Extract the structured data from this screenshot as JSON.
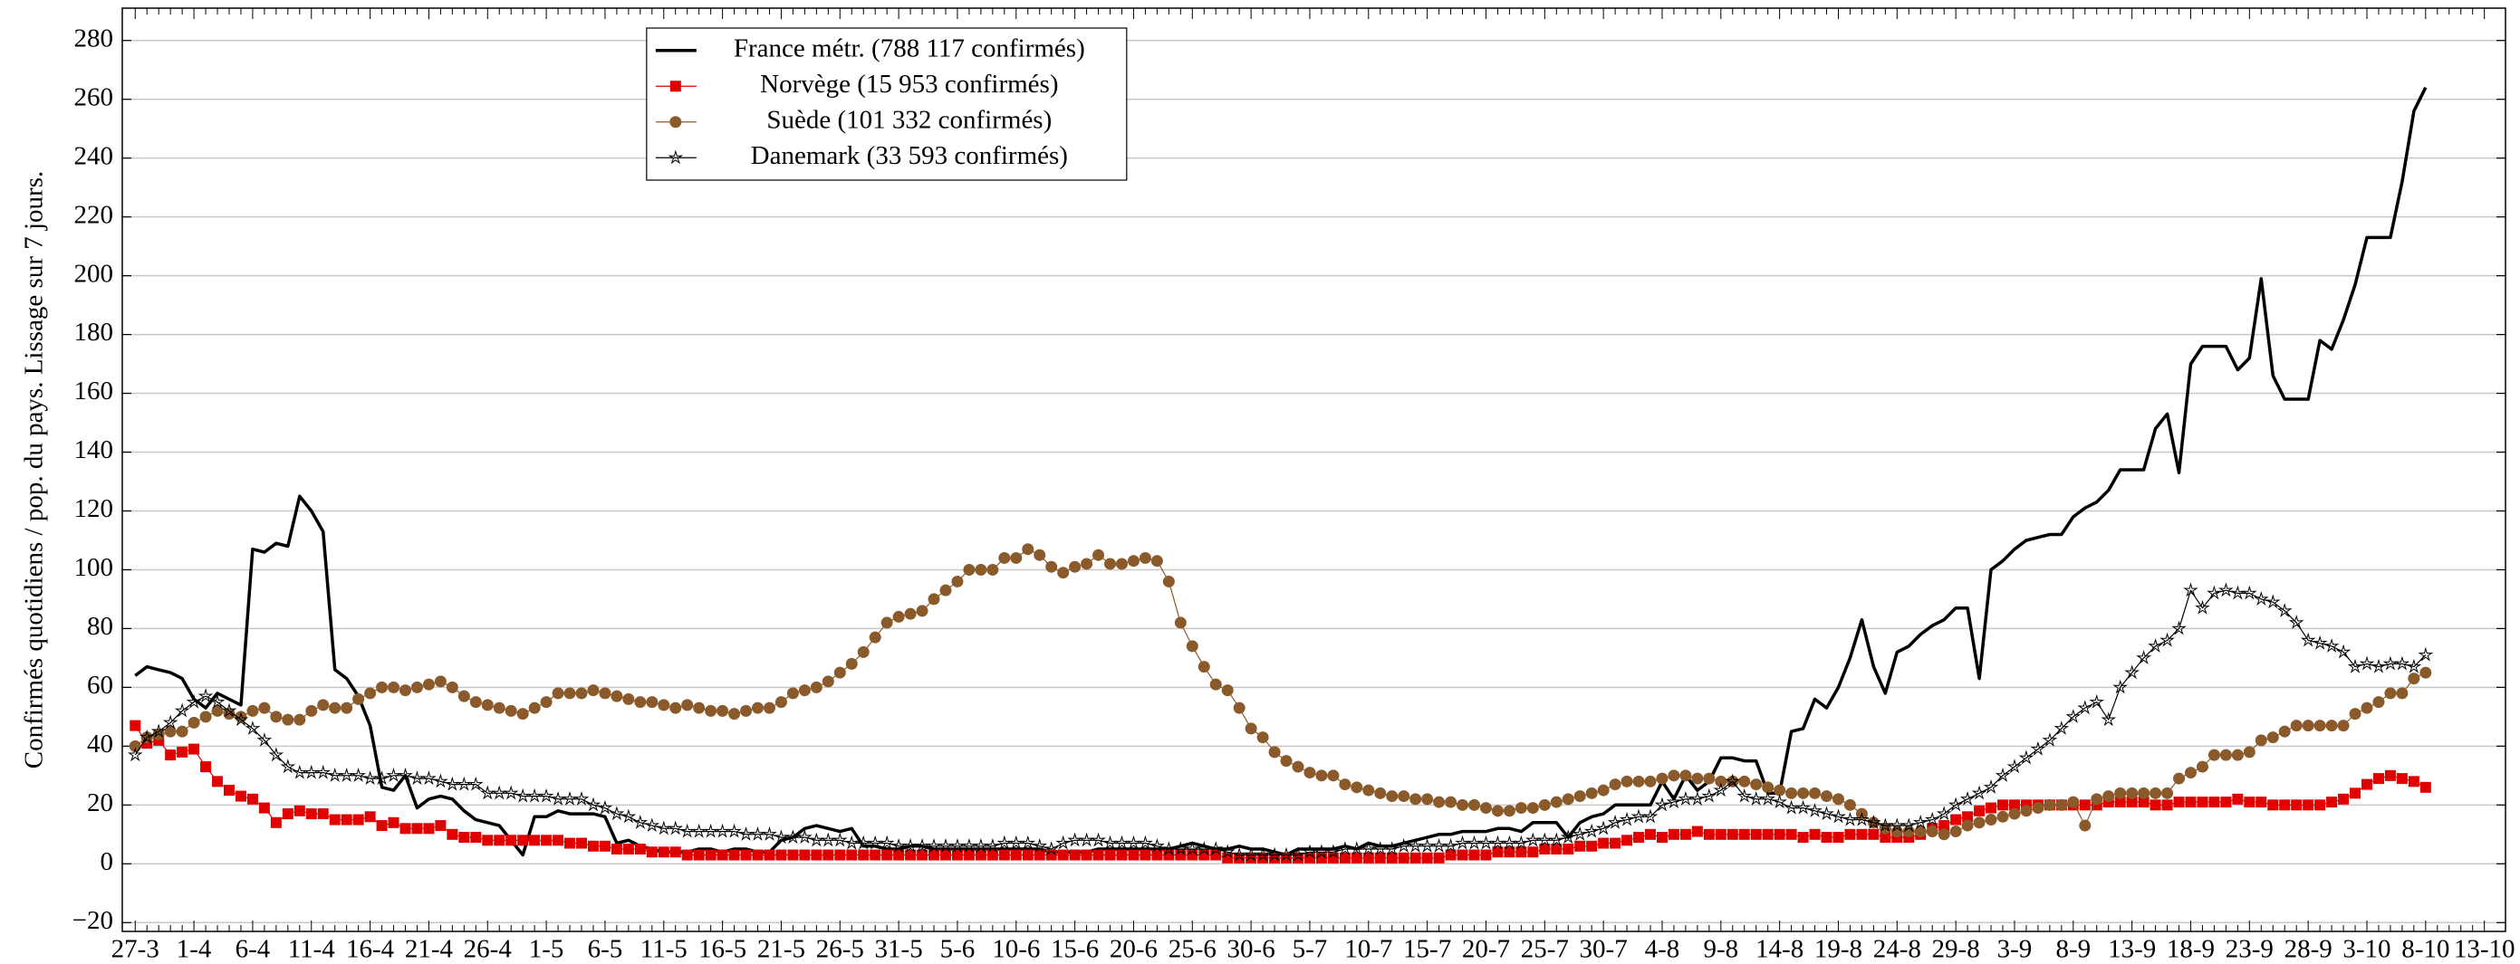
{
  "chart_data": {
    "type": "line",
    "y_label": "Confirmés quotidiens / pop. du pays. Lissage sur 7 jours.",
    "categories": [
      "27-3",
      null,
      null,
      null,
      null,
      "1-4",
      null,
      null,
      null,
      null,
      "6-4",
      null,
      null,
      null,
      null,
      "11-4",
      null,
      null,
      null,
      null,
      "16-4",
      null,
      null,
      null,
      null,
      "21-4",
      null,
      null,
      null,
      null,
      "26-4",
      null,
      null,
      null,
      null,
      "1-5",
      null,
      null,
      null,
      null,
      "6-5",
      null,
      null,
      null,
      null,
      "11-5",
      null,
      null,
      null,
      null,
      "16-5",
      null,
      null,
      null,
      null,
      "21-5",
      null,
      null,
      null,
      null,
      "26-5",
      null,
      null,
      null,
      null,
      "31-5",
      null,
      null,
      null,
      null,
      "5-6",
      null,
      null,
      null,
      null,
      "10-6",
      null,
      null,
      null,
      null,
      "15-6",
      null,
      null,
      null,
      null,
      "20-6",
      null,
      null,
      null,
      null,
      "25-6",
      null,
      null,
      null,
      null,
      "30-6",
      null,
      null,
      null,
      null,
      "5-7",
      null,
      null,
      null,
      null,
      "10-7",
      null,
      null,
      null,
      null,
      "15-7",
      null,
      null,
      null,
      null,
      "20-7",
      null,
      null,
      null,
      null,
      "25-7",
      null,
      null,
      null,
      null,
      "30-7",
      null,
      null,
      null,
      null,
      "4-8",
      null,
      null,
      null,
      null,
      "9-8",
      null,
      null,
      null,
      null,
      "14-8",
      null,
      null,
      null,
      null,
      "19-8",
      null,
      null,
      null,
      null,
      "24-8",
      null,
      null,
      null,
      null,
      "29-8",
      null,
      null,
      null,
      null,
      "3-9",
      null,
      null,
      null,
      null,
      "8-9",
      null,
      null,
      null,
      null,
      "13-9",
      null,
      null,
      null,
      null,
      "18-9",
      null,
      null,
      null,
      null,
      "23-9",
      null,
      null,
      null,
      null,
      "28-9",
      null,
      null,
      null,
      null,
      "3-10",
      null,
      null,
      null,
      null,
      "8-10",
      null,
      null,
      null,
      null,
      "13-10"
    ],
    "series": [
      {
        "name": "France métr. (788 117 confirmés)",
        "color": "#000000",
        "marker": "none",
        "values": [
          64,
          67,
          66,
          65,
          63,
          56,
          53,
          58,
          56,
          54,
          107,
          106,
          109,
          108,
          125,
          120,
          113,
          66,
          63,
          57,
          47,
          26,
          25,
          30,
          19,
          22,
          23,
          22,
          18,
          15,
          14,
          13,
          8,
          3,
          16,
          16,
          18,
          17,
          17,
          17,
          16,
          7,
          8,
          6,
          5,
          4,
          4,
          4,
          5,
          5,
          4,
          5,
          5,
          4,
          4,
          8,
          9,
          12,
          13,
          12,
          11,
          12,
          6,
          6,
          5,
          5,
          6,
          6,
          5,
          5,
          5,
          5,
          5,
          5,
          5,
          5,
          5,
          5,
          4,
          4,
          4,
          4,
          5,
          5,
          5,
          5,
          5,
          5,
          5,
          6,
          7,
          6,
          5,
          5,
          6,
          5,
          5,
          4,
          3,
          5,
          5,
          5,
          5,
          6,
          5,
          7,
          6,
          6,
          7,
          8,
          9,
          10,
          10,
          11,
          11,
          11,
          12,
          12,
          11,
          14,
          14,
          14,
          9,
          14,
          16,
          17,
          20,
          20,
          20,
          20,
          28,
          22,
          30,
          25,
          28,
          36,
          36,
          35,
          35,
          24,
          24,
          45,
          46,
          56,
          53,
          60,
          70,
          83,
          67,
          58,
          72,
          74,
          78,
          81,
          83,
          87,
          87,
          63,
          100,
          103,
          107,
          110,
          111,
          112,
          112,
          118,
          121,
          123,
          127,
          134,
          134,
          134,
          148,
          153,
          133,
          170,
          176,
          176,
          176,
          168,
          172,
          199,
          166,
          158,
          158,
          158,
          178,
          175,
          185,
          197,
          213,
          213,
          213,
          232,
          256,
          264,
          null,
          null,
          null,
          null,
          null
        ]
      },
      {
        "name": "Norvège (15 953 confirmés)",
        "color": "#e00000",
        "marker": "square",
        "values": [
          47,
          41,
          42,
          37,
          38,
          39,
          33,
          28,
          25,
          23,
          22,
          19,
          14,
          17,
          18,
          17,
          17,
          15,
          15,
          15,
          16,
          13,
          14,
          12,
          12,
          12,
          13,
          10,
          9,
          9,
          8,
          8,
          8,
          8,
          8,
          8,
          8,
          7,
          7,
          6,
          6,
          5,
          5,
          5,
          4,
          4,
          4,
          3,
          3,
          3,
          3,
          3,
          3,
          3,
          3,
          3,
          3,
          3,
          3,
          3,
          3,
          3,
          3,
          3,
          3,
          3,
          3,
          3,
          3,
          3,
          3,
          3,
          3,
          3,
          3,
          3,
          3,
          3,
          3,
          3,
          3,
          3,
          3,
          3,
          3,
          3,
          3,
          3,
          3,
          3,
          3,
          3,
          3,
          2,
          2,
          2,
          2,
          2,
          2,
          2,
          2,
          2,
          2,
          2,
          2,
          2,
          2,
          2,
          2,
          2,
          2,
          2,
          3,
          3,
          3,
          3,
          4,
          4,
          4,
          4,
          5,
          5,
          5,
          6,
          6,
          7,
          7,
          8,
          9,
          10,
          9,
          10,
          10,
          11,
          10,
          10,
          10,
          10,
          10,
          10,
          10,
          10,
          9,
          10,
          9,
          9,
          10,
          10,
          10,
          9,
          9,
          9,
          10,
          12,
          13,
          15,
          16,
          18,
          19,
          20,
          20,
          20,
          20,
          20,
          20,
          20,
          20,
          20,
          21,
          21,
          21,
          21,
          20,
          20,
          21,
          21,
          21,
          21,
          21,
          22,
          21,
          21,
          20,
          20,
          20,
          20,
          20,
          21,
          22,
          24,
          27,
          29,
          30,
          29,
          28,
          26,
          null,
          null,
          null,
          null,
          null
        ]
      },
      {
        "name": "Suède (101 332 confirmés)",
        "color": "#8b5a2b",
        "marker": "circle",
        "values": [
          40,
          43,
          44,
          45,
          45,
          48,
          50,
          52,
          51,
          50,
          52,
          53,
          50,
          49,
          49,
          52,
          54,
          53,
          53,
          56,
          58,
          60,
          60,
          59,
          60,
          61,
          62,
          60,
          57,
          55,
          54,
          53,
          52,
          51,
          53,
          55,
          58,
          58,
          58,
          59,
          58,
          57,
          56,
          55,
          55,
          54,
          53,
          54,
          53,
          52,
          52,
          51,
          52,
          53,
          53,
          55,
          58,
          59,
          60,
          62,
          65,
          68,
          72,
          77,
          82,
          84,
          85,
          86,
          90,
          93,
          96,
          100,
          100,
          100,
          104,
          104,
          107,
          105,
          101,
          99,
          101,
          102,
          105,
          102,
          102,
          103,
          104,
          103,
          96,
          82,
          74,
          67,
          61,
          59,
          53,
          46,
          43,
          38,
          35,
          33,
          31,
          30,
          30,
          27,
          26,
          25,
          24,
          23,
          23,
          22,
          22,
          21,
          21,
          20,
          20,
          19,
          18,
          18,
          19,
          19,
          20,
          21,
          22,
          23,
          24,
          25,
          27,
          28,
          28,
          28,
          29,
          30,
          30,
          29,
          29,
          28,
          28,
          28,
          27,
          26,
          25,
          24,
          24,
          24,
          23,
          22,
          20,
          17,
          14,
          12,
          11,
          11,
          11,
          11,
          10,
          11,
          13,
          14,
          15,
          16,
          17,
          18,
          19,
          20,
          20,
          21,
          13,
          22,
          23,
          24,
          24,
          24,
          24,
          24,
          29,
          31,
          33,
          37,
          37,
          37,
          38,
          42,
          43,
          45,
          47,
          47,
          47,
          47,
          47,
          51,
          53,
          55,
          58,
          58,
          63,
          65,
          null,
          null,
          null,
          null,
          null
        ]
      },
      {
        "name": "Danemark (33 593 confirmés)",
        "color": "#000000",
        "marker": "star",
        "values": [
          37,
          43,
          45,
          48,
          52,
          55,
          57,
          55,
          52,
          49,
          46,
          42,
          37,
          33,
          31,
          31,
          31,
          30,
          30,
          30,
          29,
          29,
          30,
          30,
          29,
          29,
          28,
          27,
          27,
          27,
          24,
          24,
          24,
          23,
          23,
          23,
          22,
          22,
          22,
          20,
          19,
          17,
          16,
          14,
          13,
          12,
          12,
          11,
          11,
          11,
          11,
          11,
          10,
          10,
          10,
          9,
          9,
          9,
          8,
          8,
          8,
          7,
          7,
          7,
          7,
          6,
          6,
          6,
          6,
          6,
          6,
          6,
          6,
          6,
          7,
          7,
          7,
          6,
          5,
          7,
          8,
          8,
          8,
          7,
          7,
          7,
          7,
          6,
          5,
          5,
          5,
          5,
          5,
          4,
          3,
          3,
          3,
          3,
          3,
          3,
          4,
          4,
          4,
          5,
          5,
          5,
          5,
          5,
          6,
          6,
          6,
          6,
          6,
          7,
          7,
          7,
          7,
          7,
          7,
          8,
          8,
          8,
          9,
          10,
          11,
          12,
          14,
          15,
          16,
          16,
          20,
          21,
          22,
          22,
          23,
          25,
          28,
          23,
          22,
          22,
          21,
          19,
          19,
          18,
          17,
          16,
          15,
          15,
          14,
          13,
          13,
          13,
          14,
          15,
          17,
          20,
          22,
          24,
          26,
          30,
          33,
          36,
          39,
          42,
          46,
          50,
          53,
          55,
          49,
          60,
          65,
          70,
          74,
          76,
          80,
          93,
          87,
          92,
          93,
          92,
          92,
          90,
          89,
          86,
          82,
          76,
          75,
          74,
          72,
          67,
          68,
          67,
          68,
          68,
          67,
          71,
          null,
          null,
          null,
          null,
          null
        ]
      }
    ],
    "ylim": [
      -23,
      291
    ],
    "yticks": [
      {
        "value": -20,
        "label": "−20"
      },
      0,
      20,
      40,
      60,
      80,
      100,
      120,
      140,
      160,
      180,
      200,
      220,
      240,
      260,
      280
    ],
    "grid": true,
    "legend": "upper left"
  }
}
